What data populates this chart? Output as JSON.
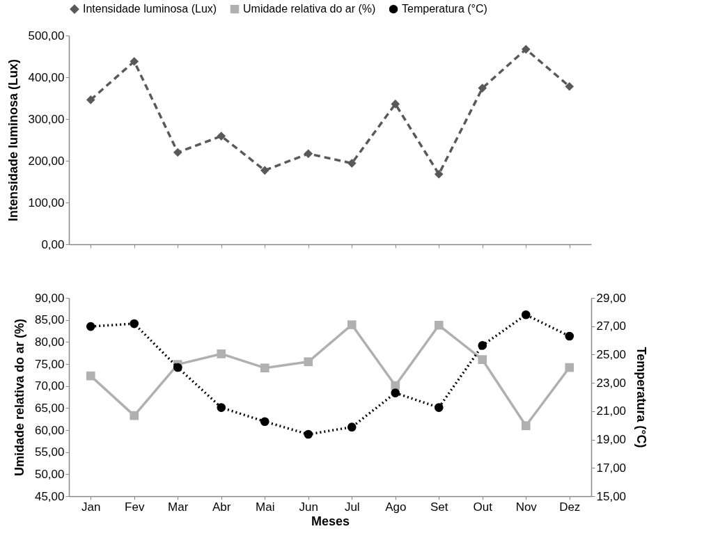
{
  "chart_data": [
    {
      "type": "line",
      "ylabel": "Intensidade luminosa (Lux)",
      "categories": [
        null,
        null,
        null,
        null,
        null,
        null,
        null,
        null,
        null,
        null,
        null,
        null
      ],
      "tick_labels": "y",
      "legend": "top",
      "grid": false,
      "ylim": [
        0,
        500
      ],
      "yticks": [
        {
          "value": 0,
          "label": "0,00"
        },
        {
          "value": 100,
          "label": "100,00"
        },
        {
          "value": 200,
          "label": "200,00"
        },
        {
          "value": 300,
          "label": "300,00"
        },
        {
          "value": 400,
          "label": "400,00"
        },
        {
          "value": 500,
          "label": "500,00"
        }
      ],
      "series": [
        {
          "name": "Intensidade luminosa (Lux)",
          "color": "#595959",
          "marker": "diamond",
          "line_style": "dashed",
          "values": [
            346,
            438,
            220,
            259,
            177,
            217,
            194,
            336,
            168,
            374,
            467,
            378
          ]
        }
      ]
    },
    {
      "type": "line",
      "xlabel": "Meses",
      "ylabel": "Umidade relativa do ar (%)",
      "y2label": "Temperatura (°C)",
      "categories": [
        "Jan",
        "Fev",
        "Mar",
        "Abr",
        "Mai",
        "Jun",
        "Jul",
        "Ago",
        "Set",
        "Out",
        "Nov",
        "Dez"
      ],
      "legend": "top",
      "grid": false,
      "ylim": [
        45,
        90
      ],
      "yticks": [
        {
          "value": 45,
          "label": "45,00"
        },
        {
          "value": 50,
          "label": "50,00"
        },
        {
          "value": 55,
          "label": "55,00"
        },
        {
          "value": 60,
          "label": "60,00"
        },
        {
          "value": 65,
          "label": "65,00"
        },
        {
          "value": 70,
          "label": "70,00"
        },
        {
          "value": 75,
          "label": "75,00"
        },
        {
          "value": 80,
          "label": "80,00"
        },
        {
          "value": 85,
          "label": "85,00"
        },
        {
          "value": 90,
          "label": "90,00"
        }
      ],
      "y2lim": [
        15,
        29
      ],
      "y2ticks": [
        {
          "value": 15,
          "label": "15,00"
        },
        {
          "value": 17,
          "label": "17,00"
        },
        {
          "value": 19,
          "label": "19,00"
        },
        {
          "value": 21,
          "label": "21,00"
        },
        {
          "value": 23,
          "label": "23,00"
        },
        {
          "value": 25,
          "label": "25,00"
        },
        {
          "value": 27,
          "label": "27,00"
        },
        {
          "value": 29,
          "label": "29,00"
        }
      ],
      "series": [
        {
          "name": "Umidade relativa do ar (%)",
          "color": "#b0b0b0",
          "marker": "square",
          "line_style": "solid",
          "values": [
            72.3,
            63.3,
            74.9,
            77.3,
            74.1,
            75.5,
            83.9,
            70.1,
            83.8,
            76.0,
            61.0,
            74.2
          ]
        },
        {
          "name": "Temperatura (°C)",
          "color": "#000000",
          "marker": "circle",
          "line_style": "dotted",
          "axis": "y2",
          "values": [
            26.98,
            27.18,
            24.09,
            21.26,
            20.27,
            19.37,
            19.88,
            22.29,
            21.26,
            25.64,
            27.81,
            26.3
          ]
        }
      ]
    }
  ]
}
